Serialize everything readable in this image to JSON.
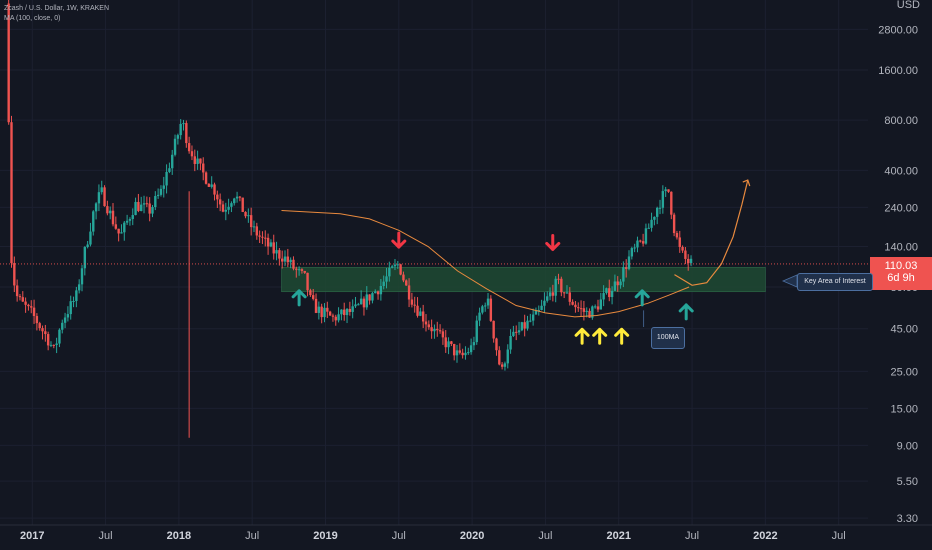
{
  "legend": {
    "line1": "Zcash / U.S. Dollar, 1W, KRAKEN",
    "line2": "MA (100, close, 0)"
  },
  "axis": {
    "unit": "USD",
    "y_ticks": [
      2800,
      1600,
      800,
      400,
      240,
      140,
      80,
      45,
      25,
      15,
      9,
      5.5,
      3.3
    ],
    "y_tick_labels": [
      "2800.00",
      "1600.00",
      "800.00",
      "400.00",
      "240.00",
      "140.00",
      "80.00",
      "45.00",
      "25.00",
      "15.00",
      "9.00",
      "5.50",
      "3.30"
    ],
    "x_ticks": [
      {
        "label": "2017",
        "t": 2017.0,
        "bold": true
      },
      {
        "label": "Jul",
        "t": 2017.5,
        "bold": false
      },
      {
        "label": "2018",
        "t": 2018.0,
        "bold": true
      },
      {
        "label": "Jul",
        "t": 2018.5,
        "bold": false
      },
      {
        "label": "2019",
        "t": 2019.0,
        "bold": true
      },
      {
        "label": "Jul",
        "t": 2019.5,
        "bold": false
      },
      {
        "label": "2020",
        "t": 2020.0,
        "bold": true
      },
      {
        "label": "Jul",
        "t": 2020.5,
        "bold": false
      },
      {
        "label": "2021",
        "t": 2021.0,
        "bold": true
      },
      {
        "label": "Jul",
        "t": 2021.5,
        "bold": false
      },
      {
        "label": "2022",
        "t": 2022.0,
        "bold": true
      },
      {
        "label": "Jul",
        "t": 2022.5,
        "bold": false
      }
    ]
  },
  "price_tag": {
    "value": "110.03",
    "countdown": "6d 9h"
  },
  "annotations": {
    "key_area_label": "Key Area of Interest",
    "ma_label": "100MA"
  },
  "colors": {
    "bull": "#26a69a",
    "bear": "#ef5350",
    "ma": "#e98a3e",
    "zone": "#1e4a33",
    "arrow_green": "#26a69a",
    "arrow_red": "#f23645",
    "arrow_yellow": "#ffeb3b"
  },
  "chart_data": {
    "type": "candlestick",
    "symbol": "Zcash / U.S. Dollar, 1W, KRAKEN",
    "scale": "log",
    "ylim": [
      3,
      4200
    ],
    "xlim": [
      2016.78,
      2022.7
    ],
    "path": [
      [
        2016.82,
        4000
      ],
      [
        2016.84,
        800
      ],
      [
        2016.86,
        100
      ],
      [
        2016.9,
        68
      ],
      [
        2017.0,
        55
      ],
      [
        2017.1,
        40
      ],
      [
        2017.15,
        33
      ],
      [
        2017.2,
        50
      ],
      [
        2017.3,
        70
      ],
      [
        2017.35,
        120
      ],
      [
        2017.42,
        230
      ],
      [
        2017.47,
        300
      ],
      [
        2017.55,
        200
      ],
      [
        2017.6,
        160
      ],
      [
        2017.7,
        250
      ],
      [
        2017.8,
        230
      ],
      [
        2017.88,
        300
      ],
      [
        2017.95,
        480
      ],
      [
        2018.02,
        800
      ],
      [
        2018.07,
        550
      ],
      [
        2018.15,
        400
      ],
      [
        2018.25,
        300
      ],
      [
        2018.3,
        230
      ],
      [
        2018.38,
        290
      ],
      [
        2018.45,
        220
      ],
      [
        2018.5,
        180
      ],
      [
        2018.58,
        150
      ],
      [
        2018.65,
        130
      ],
      [
        2018.72,
        120
      ],
      [
        2018.8,
        100
      ],
      [
        2018.86,
        90
      ],
      [
        2018.9,
        65
      ],
      [
        2018.95,
        58
      ],
      [
        2019.05,
        52
      ],
      [
        2019.12,
        55
      ],
      [
        2019.2,
        58
      ],
      [
        2019.3,
        70
      ],
      [
        2019.38,
        82
      ],
      [
        2019.45,
        100
      ],
      [
        2019.5,
        110
      ],
      [
        2019.55,
        80
      ],
      [
        2019.62,
        60
      ],
      [
        2019.7,
        48
      ],
      [
        2019.78,
        40
      ],
      [
        2019.85,
        35
      ],
      [
        2019.92,
        30
      ],
      [
        2020.0,
        35
      ],
      [
        2020.05,
        55
      ],
      [
        2020.1,
        70
      ],
      [
        2020.14,
        45
      ],
      [
        2020.2,
        24
      ],
      [
        2020.25,
        38
      ],
      [
        2020.35,
        46
      ],
      [
        2020.45,
        55
      ],
      [
        2020.52,
        70
      ],
      [
        2020.58,
        85
      ],
      [
        2020.65,
        70
      ],
      [
        2020.72,
        60
      ],
      [
        2020.78,
        56
      ],
      [
        2020.83,
        58
      ],
      [
        2020.9,
        70
      ],
      [
        2020.96,
        80
      ],
      [
        2021.02,
        95
      ],
      [
        2021.08,
        125
      ],
      [
        2021.13,
        140
      ],
      [
        2021.18,
        160
      ],
      [
        2021.25,
        230
      ],
      [
        2021.3,
        280
      ],
      [
        2021.34,
        300
      ],
      [
        2021.38,
        175
      ],
      [
        2021.42,
        130
      ],
      [
        2021.46,
        115
      ],
      [
        2021.5,
        110
      ]
    ],
    "ma_100": [
      [
        2018.7,
        230
      ],
      [
        2018.9,
        225
      ],
      [
        2019.1,
        220
      ],
      [
        2019.3,
        205
      ],
      [
        2019.5,
        175
      ],
      [
        2019.7,
        140
      ],
      [
        2019.9,
        100
      ],
      [
        2020.1,
        78
      ],
      [
        2020.3,
        62
      ],
      [
        2020.5,
        56
      ],
      [
        2020.7,
        53
      ],
      [
        2020.85,
        54
      ],
      [
        2021.0,
        57
      ],
      [
        2021.2,
        64
      ],
      [
        2021.35,
        72
      ],
      [
        2021.48,
        80
      ]
    ],
    "key_zone": {
      "low": 75,
      "high": 105,
      "t_start": 2018.7,
      "t_end": 2022.0
    },
    "projection": [
      [
        2021.38,
        95
      ],
      [
        2021.5,
        82
      ],
      [
        2021.6,
        85
      ],
      [
        2021.7,
        110
      ],
      [
        2021.78,
        160
      ],
      [
        2021.84,
        250
      ],
      [
        2021.88,
        350
      ]
    ],
    "last_price": 110.03
  }
}
